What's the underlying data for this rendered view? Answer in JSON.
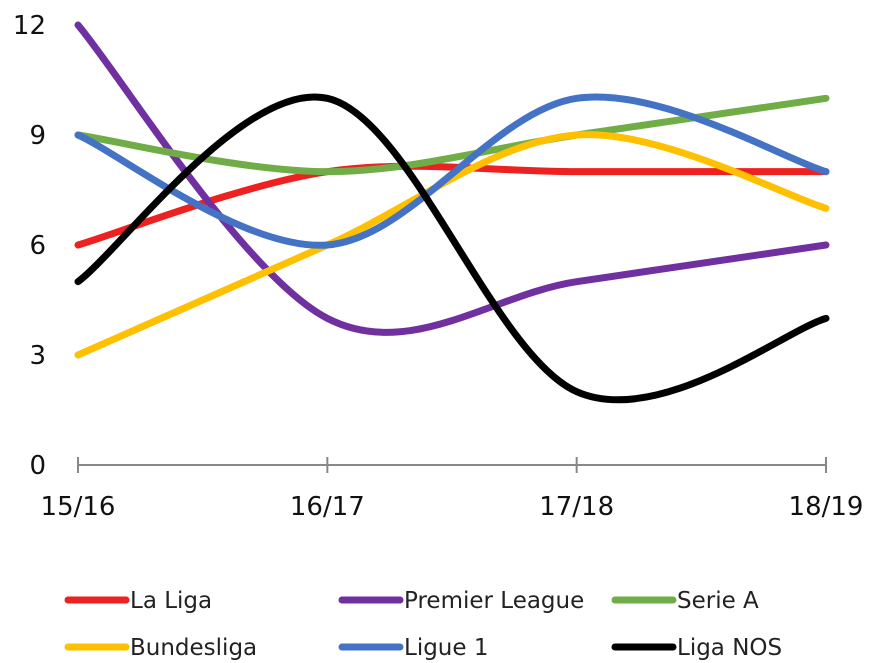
{
  "chart_data": {
    "type": "line",
    "categories": [
      "15/16",
      "16/17",
      "17/18",
      "18/19"
    ],
    "ylim": [
      0,
      12
    ],
    "yticks": [
      0,
      3,
      6,
      9,
      12
    ],
    "grid": false,
    "legend_position": "bottom",
    "series": [
      {
        "name": "La Liga",
        "color": "#ee2121",
        "values": [
          6,
          8,
          8,
          8
        ]
      },
      {
        "name": "Premier League",
        "color": "#7030a0",
        "values": [
          12,
          4,
          5,
          6
        ]
      },
      {
        "name": "Serie A",
        "color": "#70ad47",
        "values": [
          9,
          8,
          9,
          10
        ]
      },
      {
        "name": "Bundesliga",
        "color": "#ffc000",
        "values": [
          3,
          6,
          9,
          7
        ]
      },
      {
        "name": "Ligue 1",
        "color": "#4472c4",
        "values": [
          9,
          6,
          10,
          8
        ]
      },
      {
        "name": "Liga NOS",
        "color": "#000000",
        "values": [
          5,
          10,
          2,
          4
        ]
      }
    ]
  }
}
